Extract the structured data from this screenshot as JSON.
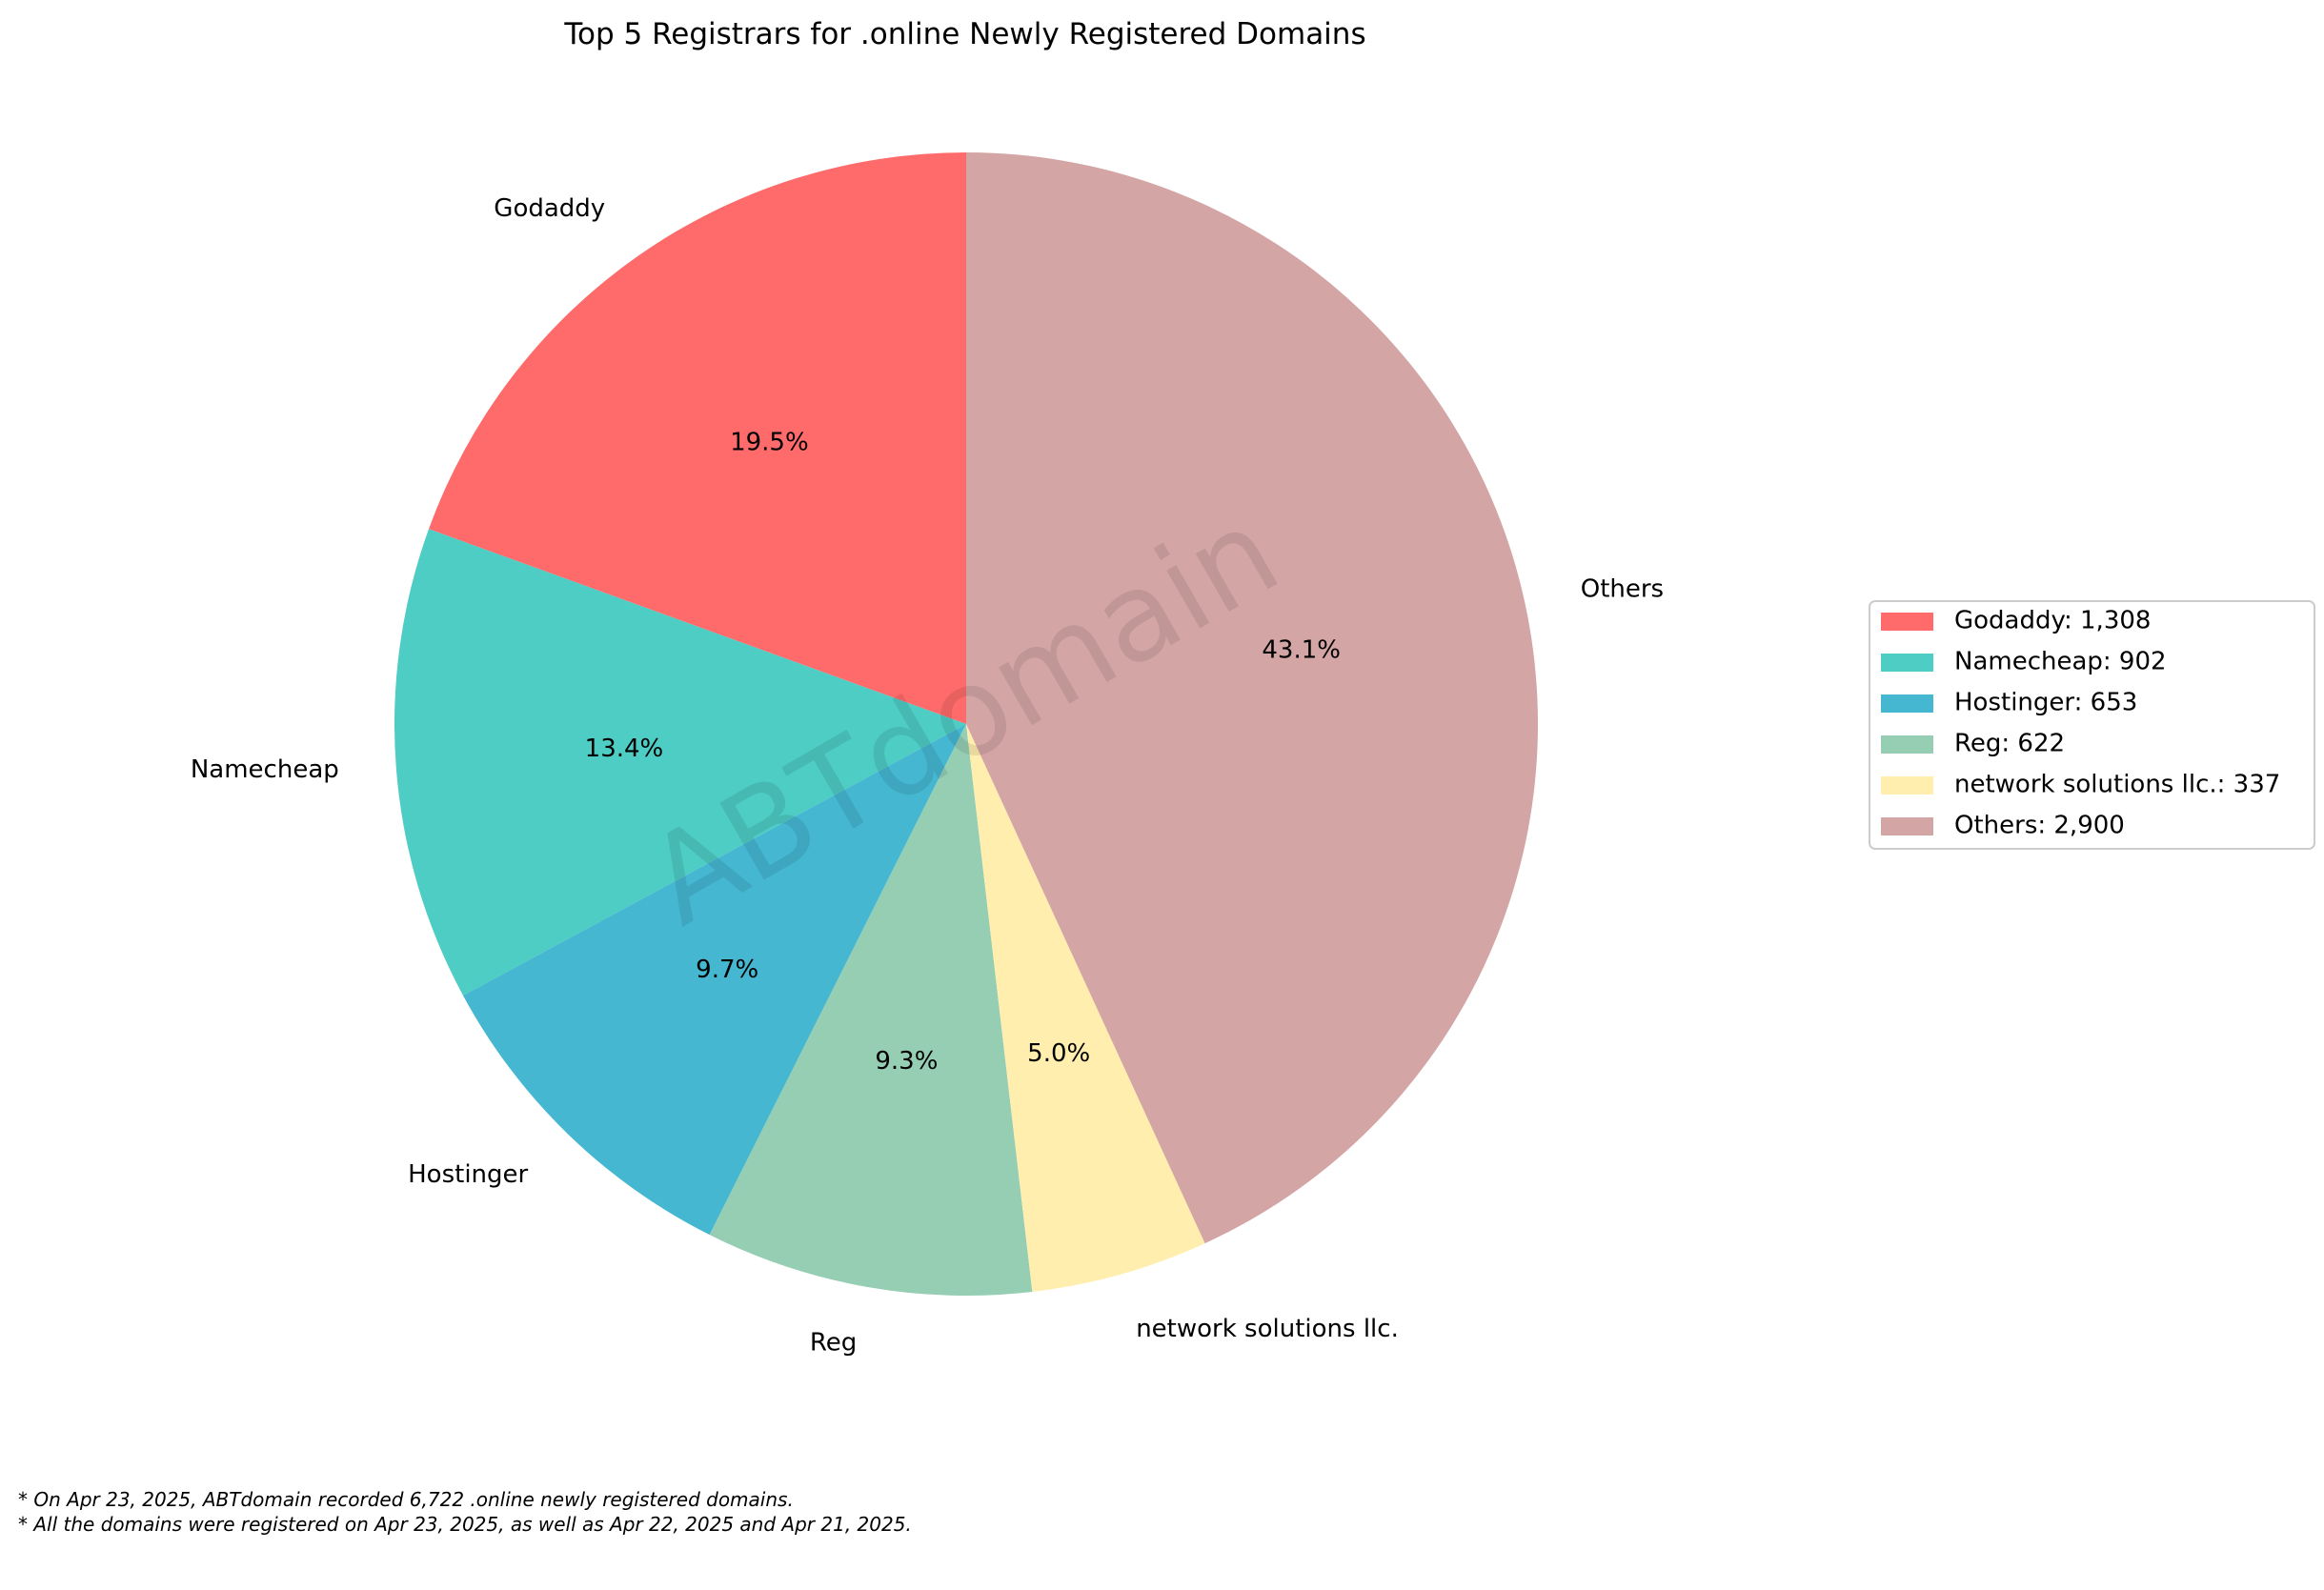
{
  "chart_data": {
    "type": "pie",
    "title": "Top 5 Registrars for .online Newly Registered Domains",
    "categories": [
      "Godaddy",
      "Namecheap",
      "Hostinger",
      "Reg",
      "network solutions llc.",
      "Others"
    ],
    "values": [
      1308,
      902,
      653,
      622,
      337,
      2900
    ],
    "percent_labels": [
      "19.5%",
      "13.4%",
      "9.7%",
      "9.3%",
      "5.0%",
      "43.1%"
    ],
    "colors": [
      "#ff6b6b",
      "#4ecdc4",
      "#45b7d1",
      "#96ceb4",
      "#ffeead",
      "#d4a5a5"
    ],
    "legend_entries": [
      "Godaddy: 1,308",
      "Namecheap: 902",
      "Hostinger: 653",
      "Reg: 622",
      "network solutions llc.: 337",
      "Others: 2,900"
    ],
    "legend_position": "right",
    "start_angle": "top",
    "direction": "counterclockwise"
  },
  "watermark": "ABTdomain",
  "footnotes": [
    "* On Apr 23, 2025, ABTdomain recorded 6,722 .online newly registered domains.",
    "* All the domains were registered on Apr 23, 2025, as well as Apr 22, 2025 and Apr 21, 2025."
  ]
}
